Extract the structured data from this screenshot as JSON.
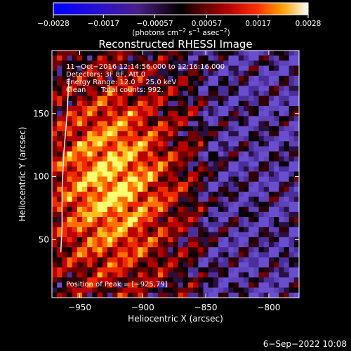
{
  "chart_data": {
    "type": "heatmap",
    "title": "Reconstructed RHESSI Image",
    "xlabel": "Heliocentric X (arcsec)",
    "ylabel": "Heliocentric Y (arcsec)",
    "xlim": [
      -972,
      -776
    ],
    "ylim": [
      4,
      200
    ],
    "x_ticks": [
      -950,
      -900,
      -850,
      -800
    ],
    "x_tick_labels": [
      "−950",
      "−900",
      "−850",
      "−800"
    ],
    "y_ticks": [
      50,
      100,
      150
    ],
    "y_tick_labels": [
      "50",
      "100",
      "150"
    ],
    "grid": false,
    "colorbar": {
      "min": -0.0028,
      "max": 0.0028,
      "ticks": [
        -0.0028,
        -0.0017,
        -0.00057,
        0.00057,
        0.0017,
        0.0028
      ],
      "tick_labels": [
        "−0.0028",
        "−0.0017",
        "−0.00057",
        "0.00057",
        "0.0017",
        "0.0028"
      ],
      "unit_main": "(photons cm",
      "unit_sup1": "−2",
      "unit_mid": " s",
      "unit_sup2": "−1",
      "unit_mid2": " asec",
      "unit_sup3": "−2",
      "unit_end": ")"
    },
    "annotations": {
      "time_range": "11−Oct−2016 12:14:56.000 to 12:16:16.000",
      "detectors": "Detectors: 3F 8F, Att 0",
      "energy": "Energy Range: 12.0 − 25.0 keV",
      "clean": "Clean",
      "counts": "Total counts: 992.",
      "peak": "Position of Peak = [−925,79]"
    },
    "limb_curve": [
      [
        -958.5,
        178
      ],
      [
        -960,
        150
      ],
      [
        -962.5,
        120
      ],
      [
        -964,
        90
      ],
      [
        -964,
        60
      ],
      [
        -965,
        40
      ]
    ],
    "peak_position": [
      -925,
      79
    ],
    "grid_size": [
      49,
      49
    ]
  },
  "footer_date": "6−Sep−2022 10:08"
}
